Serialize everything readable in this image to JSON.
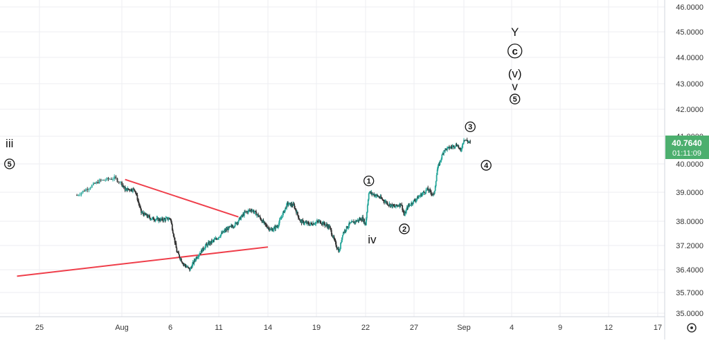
{
  "colors": {
    "up": "#26a69a",
    "down": "#333333",
    "grid": "#eceef2",
    "trendline": "#ef3e4a",
    "price_badge": "#4caf6e",
    "axis_text": "#333333"
  },
  "price_scale": {
    "ticks": [
      "46.0000",
      "45.0000",
      "44.0000",
      "43.0000",
      "42.0000",
      "41.0000",
      "40.0000",
      "39.0000",
      "38.0000",
      "37.2000",
      "36.4000",
      "35.7000",
      "35.0000"
    ],
    "log_scale": true,
    "range": [
      34.95,
      46.2
    ]
  },
  "time_scale": {
    "ticks": [
      "25",
      "Aug",
      "6",
      "11",
      "14",
      "19",
      "22",
      "27",
      "Sep",
      "4",
      "9",
      "12",
      "17"
    ],
    "range_bar_index": [
      -6,
      134
    ]
  },
  "last_price": {
    "value": "40.7640",
    "countdown": "01:11:09"
  },
  "settings_icon": "gear-icon",
  "chart_data": {
    "type": "candlestick",
    "timeframe_note": "2-hour bars, ~5 per trading day, weekends skipped",
    "day_positions_labels": {
      "25": "Jul 25",
      "Aug": "Aug 1",
      "6": "Aug 6",
      "11": "Aug 11",
      "14": "Aug 14",
      "19": "Aug 19",
      "22": "Aug 22",
      "27": "Aug 27",
      "Sep": "Sep 1",
      "4": "Sep 4",
      "9": "Sep 9",
      "12": "Sep 12",
      "17": "Sep 17"
    },
    "close_path": [
      [
        -6,
        38.9
      ],
      [
        -3,
        39.4
      ],
      [
        -1,
        39.5
      ],
      [
        1,
        39.1
      ],
      [
        4,
        39.1
      ],
      [
        6,
        38.3
      ],
      [
        9,
        38.1
      ],
      [
        12,
        38.05
      ],
      [
        15,
        38.1
      ],
      [
        17,
        37.0
      ],
      [
        19,
        36.6
      ],
      [
        21,
        36.4
      ],
      [
        23,
        36.8
      ],
      [
        26,
        37.2
      ],
      [
        29,
        37.4
      ],
      [
        32,
        37.7
      ],
      [
        35,
        37.9
      ],
      [
        38,
        38.3
      ],
      [
        40,
        38.4
      ],
      [
        42,
        38.2
      ],
      [
        44,
        37.9
      ],
      [
        46,
        37.7
      ],
      [
        48,
        37.85
      ],
      [
        51,
        38.6
      ],
      [
        53,
        38.55
      ],
      [
        55,
        38.0
      ],
      [
        58,
        37.9
      ],
      [
        61,
        38.0
      ],
      [
        64,
        37.8
      ],
      [
        66,
        37.2
      ],
      [
        67,
        37.0
      ],
      [
        68,
        37.6
      ],
      [
        70,
        37.9
      ],
      [
        72,
        38.0
      ],
      [
        74,
        38.1
      ],
      [
        75,
        37.9
      ],
      [
        76,
        39.0
      ],
      [
        79,
        38.85
      ],
      [
        82,
        38.6
      ],
      [
        84,
        38.5
      ],
      [
        86,
        38.6
      ],
      [
        87,
        38.2
      ],
      [
        88,
        38.5
      ],
      [
        91,
        38.8
      ],
      [
        94,
        39.1
      ],
      [
        96,
        38.9
      ],
      [
        97,
        39.8
      ],
      [
        99,
        40.5
      ],
      [
        101,
        40.6
      ],
      [
        103,
        40.7
      ],
      [
        104,
        40.45
      ],
      [
        105,
        40.9
      ],
      [
        107,
        40.76
      ]
    ],
    "trendlines": [
      {
        "from": [
          1,
          39.45
        ],
        "to": [
          36,
          38.15
        ]
      },
      {
        "from": [
          -14,
          36.2
        ],
        "to": [
          45,
          37.15
        ]
      }
    ],
    "labels": [
      {
        "text": "iii",
        "type": "plain",
        "at": [
          -15,
          40.75
        ]
      },
      {
        "text": "5",
        "type": "circle",
        "at": [
          -15,
          40.0
        ]
      },
      {
        "text": "1",
        "type": "circle",
        "at": [
          76,
          39.4
        ]
      },
      {
        "text": "iv",
        "type": "plain",
        "at": [
          77,
          37.4
        ]
      },
      {
        "text": "2",
        "type": "circle",
        "at": [
          87,
          37.75
        ]
      },
      {
        "text": "3",
        "type": "circle",
        "at": [
          107,
          41.35
        ]
      },
      {
        "text": "4",
        "type": "circle",
        "at": [
          112,
          39.95
        ]
      },
      {
        "text": "Y",
        "type": "plain",
        "at": [
          121,
          45.0
        ]
      },
      {
        "text": "c",
        "type": "circle-big",
        "at": [
          121,
          44.25
        ]
      },
      {
        "text": "(v)",
        "type": "plain",
        "at": [
          121,
          43.4
        ]
      },
      {
        "text": "v",
        "type": "plain",
        "at": [
          121,
          42.9
        ]
      },
      {
        "text": "5",
        "type": "circle",
        "at": [
          121,
          42.4
        ]
      }
    ]
  }
}
